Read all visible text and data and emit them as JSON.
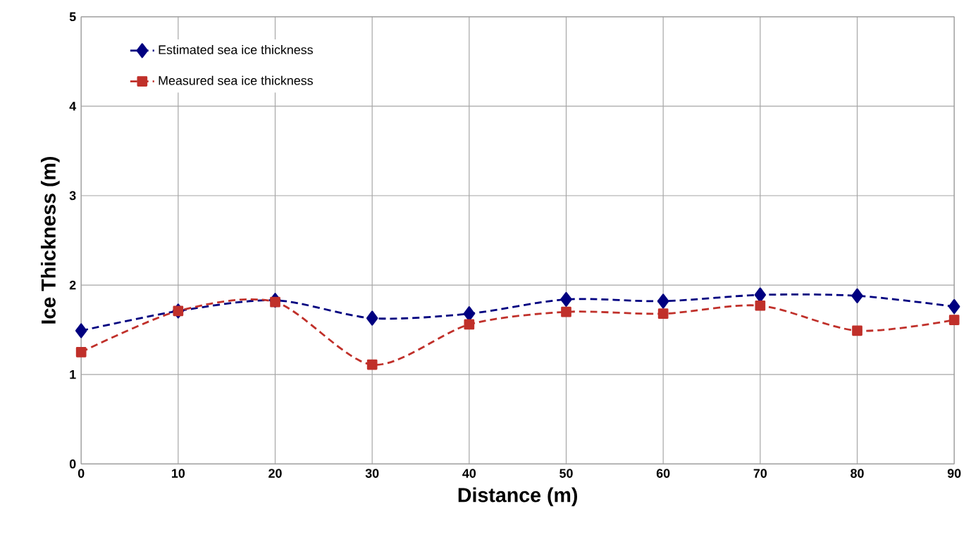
{
  "chart_data": {
    "type": "line",
    "xlabel": "Distance (m)",
    "ylabel": "Ice Thickness (m)",
    "x": [
      0,
      10,
      20,
      30,
      40,
      50,
      60,
      70,
      80,
      90
    ],
    "series": [
      {
        "name": "Estimated sea ice thickness",
        "color": "#000080",
        "marker": "diamond",
        "line_style": "dashed",
        "values": [
          1.49,
          1.71,
          1.83,
          1.63,
          1.68,
          1.84,
          1.82,
          1.89,
          1.88,
          1.76
        ]
      },
      {
        "name": "Measured sea ice thickness",
        "color": "#c0302a",
        "marker": "square",
        "line_style": "dashed",
        "values": [
          1.25,
          1.71,
          1.81,
          1.11,
          1.56,
          1.7,
          1.68,
          1.77,
          1.49,
          1.61
        ]
      }
    ],
    "xlim": [
      0,
      90
    ],
    "ylim": [
      0,
      5
    ],
    "xticks": [
      0,
      10,
      20,
      30,
      40,
      50,
      60,
      70,
      80,
      90
    ],
    "yticks": [
      0,
      1,
      2,
      3,
      4,
      5
    ],
    "grid": true,
    "legend": "top left"
  }
}
